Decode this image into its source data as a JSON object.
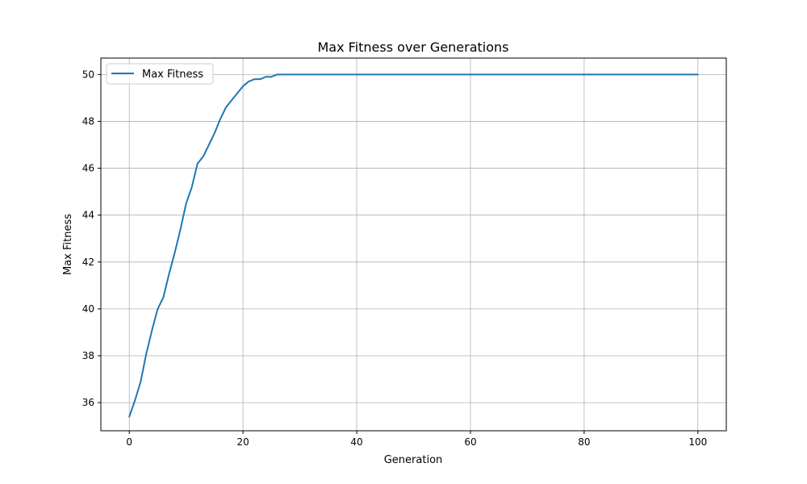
{
  "chart_data": {
    "type": "line",
    "title": "Max Fitness over Generations",
    "xlabel": "Generation",
    "ylabel": "Max Fitness",
    "xlim": [
      -5,
      105
    ],
    "ylim": [
      34.8,
      50.7
    ],
    "xticks": [
      0,
      20,
      40,
      60,
      80,
      100
    ],
    "yticks": [
      36,
      38,
      40,
      42,
      44,
      46,
      48,
      50
    ],
    "grid": true,
    "legend_position": "upper-left",
    "series": [
      {
        "name": "Max Fitness",
        "color": "#1f77b4",
        "x": [
          0,
          1,
          2,
          3,
          4,
          5,
          6,
          7,
          8,
          9,
          10,
          11,
          12,
          13,
          14,
          15,
          16,
          17,
          18,
          19,
          20,
          21,
          22,
          23,
          24,
          25,
          26,
          27,
          28,
          29,
          30,
          31,
          32,
          33,
          34,
          35,
          36,
          37,
          38,
          39,
          40,
          41,
          42,
          43,
          44,
          45,
          46,
          47,
          48,
          49,
          50,
          51,
          52,
          53,
          54,
          55,
          56,
          57,
          58,
          59,
          60,
          61,
          62,
          63,
          64,
          65,
          66,
          67,
          68,
          69,
          70,
          71,
          72,
          73,
          74,
          75,
          76,
          77,
          78,
          79,
          80,
          81,
          82,
          83,
          84,
          85,
          86,
          87,
          88,
          89,
          90,
          91,
          92,
          93,
          94,
          95,
          96,
          97,
          98,
          99,
          100
        ],
        "y": [
          35.4,
          36.1,
          36.9,
          38.1,
          39.1,
          40.0,
          40.5,
          41.5,
          42.4,
          43.4,
          44.5,
          45.2,
          46.2,
          46.5,
          47.0,
          47.5,
          48.1,
          48.6,
          48.9,
          49.2,
          49.5,
          49.7,
          49.8,
          49.8,
          49.9,
          49.9,
          50.0,
          50.0,
          50.0,
          50.0,
          50.0,
          50.0,
          50.0,
          50.0,
          50.0,
          50.0,
          50.0,
          50.0,
          50.0,
          50.0,
          50.0,
          50.0,
          50.0,
          50.0,
          50.0,
          50.0,
          50.0,
          50.0,
          50.0,
          50.0,
          50.0,
          50.0,
          50.0,
          50.0,
          50.0,
          50.0,
          50.0,
          50.0,
          50.0,
          50.0,
          50.0,
          50.0,
          50.0,
          50.0,
          50.0,
          50.0,
          50.0,
          50.0,
          50.0,
          50.0,
          50.0,
          50.0,
          50.0,
          50.0,
          50.0,
          50.0,
          50.0,
          50.0,
          50.0,
          50.0,
          50.0,
          50.0,
          50.0,
          50.0,
          50.0,
          50.0,
          50.0,
          50.0,
          50.0,
          50.0,
          50.0,
          50.0,
          50.0,
          50.0,
          50.0,
          50.0,
          50.0,
          50.0,
          50.0,
          50.0,
          50.0
        ]
      }
    ]
  }
}
